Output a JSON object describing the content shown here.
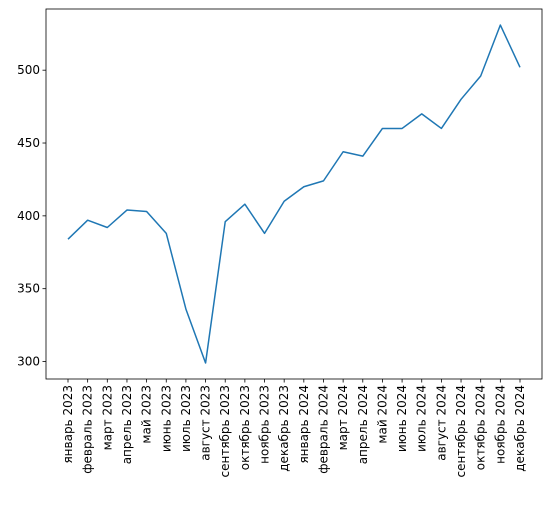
{
  "chart_data": {
    "type": "line",
    "title": "",
    "xlabel": "",
    "ylabel": "",
    "categories": [
      "январь 2023",
      "февраль 2023",
      "март 2023",
      "апрель 2023",
      "май 2023",
      "июнь 2023",
      "июль 2023",
      "август 2023",
      "сентябрь 2023",
      "октябрь 2023",
      "ноябрь 2023",
      "декабрь 2023",
      "январь 2024",
      "февраль 2024",
      "март 2024",
      "апрель 2024",
      "май 2024",
      "июнь 2024",
      "июль 2024",
      "август 2024",
      "сентябрь 2024",
      "октябрь 2024",
      "ноябрь 2024",
      "декабрь 2024"
    ],
    "series": [
      {
        "values": [
          384,
          397,
          392,
          404,
          403,
          388,
          336,
          299,
          396,
          408,
          388,
          410,
          420,
          424,
          444,
          441,
          460,
          460,
          470,
          460,
          480,
          496,
          531,
          502
        ],
        "color": "#1f77b4"
      }
    ],
    "ylim": [
      288,
      542
    ],
    "yticks": [
      300,
      350,
      400,
      450,
      500
    ],
    "grid": false,
    "legend": "none"
  }
}
